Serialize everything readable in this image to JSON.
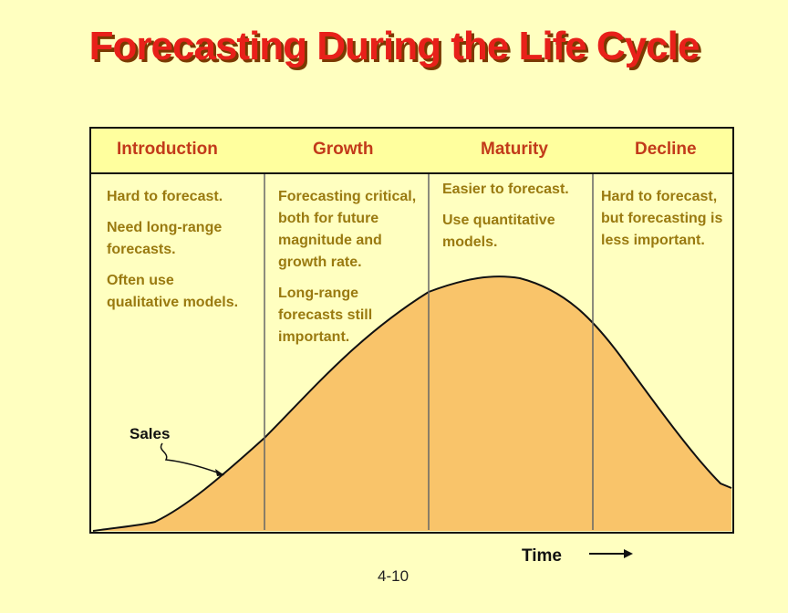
{
  "title": "Forecasting During the Life Cycle",
  "stages": [
    {
      "label": "Introduction",
      "notes": [
        "Hard to forecast.",
        "Need long-range forecasts.",
        "Often use qualitative models."
      ]
    },
    {
      "label": "Growth",
      "notes": [
        "Forecasting critical, both for future magnitude and growth rate.",
        "Long-range forecasts still important."
      ]
    },
    {
      "label": "Maturity",
      "notes": [
        "Easier to forecast.",
        "Use quantitative models."
      ]
    },
    {
      "label": "Decline",
      "notes": [
        "Hard to forecast, but forecasting is less important."
      ]
    }
  ],
  "curve_label": "Sales",
  "x_axis_label": "Time",
  "page_number": "4-10",
  "colors": {
    "title": "#e8201a",
    "stage_label": "#c23a1a",
    "note_text": "#9a7a10",
    "curve_fill": "#f9c46a",
    "background": "#ffffc0"
  }
}
